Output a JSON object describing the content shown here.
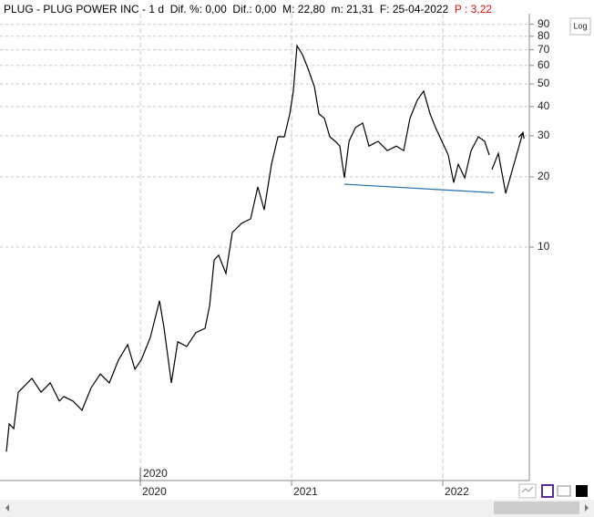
{
  "header": {
    "symbol": "PLUG - PLUG POWER INC - 1 d",
    "stats": "Dif. %: 0,00  Dif.: 0,00  M: 22,80  m: 21,31  F: 25-04-2022",
    "last": "P : 3,22"
  },
  "scale_button": "Log",
  "chart_data": {
    "type": "line",
    "log_scale": true,
    "grid": true,
    "x": [
      2019.114,
      2019.133,
      2019.163,
      2019.193,
      2019.223,
      2019.283,
      2019.343,
      2019.404,
      2019.464,
      2019.494,
      2019.554,
      2019.614,
      2019.675,
      2019.735,
      2019.795,
      2019.855,
      2019.916,
      2019.964,
      2020.006,
      2020.066,
      2020.127,
      2020.157,
      2020.205,
      2020.247,
      2020.307,
      2020.367,
      2020.428,
      2020.458,
      2020.488,
      2020.518,
      2020.566,
      2020.608,
      2020.669,
      2020.729,
      2020.777,
      2020.819,
      2020.867,
      2020.91,
      2020.952,
      2020.988,
      2021.012,
      2021.036,
      2021.072,
      2021.108,
      2021.151,
      2021.181,
      2021.217,
      2021.253,
      2021.289,
      2021.319,
      2021.349,
      2021.38,
      2021.422,
      2021.47,
      2021.512,
      2021.572,
      2021.633,
      2021.693,
      2021.741,
      2021.783,
      2021.831,
      2021.873,
      2021.916,
      2021.952,
      2021.994,
      2022.036,
      2022.072,
      2022.102,
      2022.145,
      2022.187,
      2022.235,
      2022.277,
      2022.307
    ],
    "series": [
      {
        "color": "#000000",
        "values": [
          1.33,
          1.75,
          1.67,
          2.39,
          2.5,
          2.74,
          2.39,
          2.62,
          2.19,
          2.29,
          2.19,
          2.0,
          2.5,
          2.86,
          2.62,
          3.28,
          3.82,
          3.0,
          3.28,
          4.1,
          5.89,
          4.49,
          2.62,
          3.93,
          3.75,
          4.3,
          4.49,
          5.62,
          8.81,
          9.23,
          7.71,
          11.55,
          12.64,
          13.21,
          18.11,
          14.45,
          22.66,
          29.7,
          29.7,
          37.2,
          46.6,
          72.9,
          66.7,
          58.3,
          48.7,
          37.2,
          35.6,
          29.7,
          28.4,
          27.1,
          19.8,
          28.4,
          32.5,
          34.0,
          27.1,
          28.4,
          25.9,
          27.1,
          25.9,
          35.6,
          42.6,
          46.6,
          37.2,
          32.5,
          28.4,
          24.8,
          18.9,
          22.66,
          19.8,
          25.9,
          29.7,
          28.4,
          24.8
        ]
      }
    ],
    "lines": [
      {
        "color": "#1f6fb5",
        "arrow": false,
        "x": [
          2021.349,
          2022.337
        ],
        "values": [
          18.6,
          17.1
        ]
      },
      {
        "color": "#000000",
        "arrow": true,
        "x": [
          2022.325,
          2022.367,
          2022.416,
          2022.53
        ],
        "values": [
          21.5,
          25.2,
          17.0,
          31.0
        ]
      }
    ],
    "period_marker": {
      "x": 2020,
      "label": "2020"
    },
    "xlim": [
      2019.072,
      2022.572
    ],
    "xticks": [
      2020,
      2021,
      2022
    ],
    "ylim": [
      1,
      100
    ],
    "yticks": [
      10,
      20,
      30,
      40,
      50,
      60,
      70,
      80,
      90
    ]
  }
}
